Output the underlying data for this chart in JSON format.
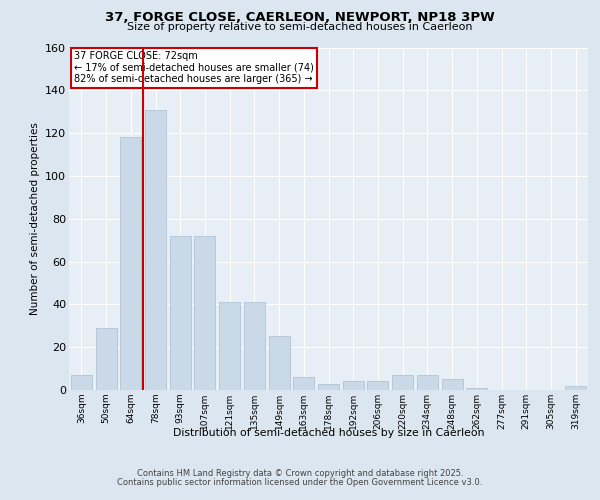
{
  "title1": "37, FORGE CLOSE, CAERLEON, NEWPORT, NP18 3PW",
  "title2": "Size of property relative to semi-detached houses in Caerleon",
  "xlabel": "Distribution of semi-detached houses by size in Caerleon",
  "ylabel": "Number of semi-detached properties",
  "categories": [
    "36sqm",
    "50sqm",
    "64sqm",
    "78sqm",
    "93sqm",
    "107sqm",
    "121sqm",
    "135sqm",
    "149sqm",
    "163sqm",
    "178sqm",
    "192sqm",
    "206sqm",
    "220sqm",
    "234sqm",
    "248sqm",
    "262sqm",
    "277sqm",
    "291sqm",
    "305sqm",
    "319sqm"
  ],
  "values": [
    7,
    29,
    118,
    131,
    72,
    72,
    41,
    41,
    25,
    6,
    3,
    4,
    4,
    7,
    7,
    5,
    1,
    0,
    0,
    0,
    2
  ],
  "bar_color": "#c9d9e8",
  "bar_edge_color": "#aabdd0",
  "vline_x": 2.5,
  "vline_color": "#cc0000",
  "annotation_title": "37 FORGE CLOSE: 72sqm",
  "annotation_line1": "← 17% of semi-detached houses are smaller (74)",
  "annotation_line2": "82% of semi-detached houses are larger (365) →",
  "annotation_box_color": "#cc0000",
  "ylim": [
    0,
    160
  ],
  "yticks": [
    0,
    20,
    40,
    60,
    80,
    100,
    120,
    140,
    160
  ],
  "footer1": "Contains HM Land Registry data © Crown copyright and database right 2025.",
  "footer2": "Contains public sector information licensed under the Open Government Licence v3.0.",
  "bg_color": "#dce6f0",
  "plot_bg_color": "#e8eef5",
  "grid_color": "#ffffff"
}
